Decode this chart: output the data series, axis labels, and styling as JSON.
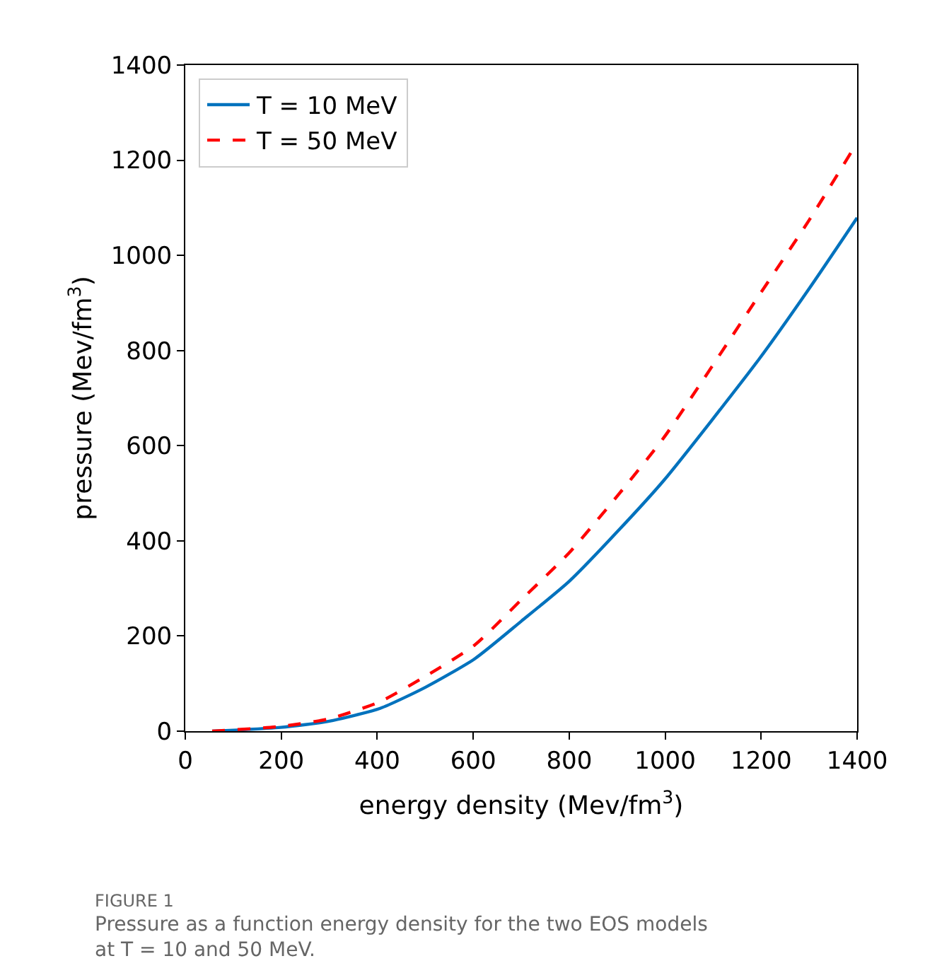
{
  "chart_data": {
    "type": "line",
    "xlabel": "energy density (Mev/fm$^{3}$)",
    "ylabel": "pressure (Mev/fm$^{3}$)",
    "xlim": [
      0,
      1400
    ],
    "ylim": [
      0,
      1400
    ],
    "xticks": [
      0,
      200,
      400,
      600,
      800,
      1000,
      1200,
      1400
    ],
    "yticks": [
      0,
      200,
      400,
      600,
      800,
      1000,
      1200,
      1400
    ],
    "legend": "top left",
    "series": [
      {
        "name": "T = 10 MeV",
        "color": "#0072bd",
        "line_style": "solid",
        "x": [
          56,
          199,
          300,
          406,
          500,
          603,
          700,
          800,
          900,
          998,
          1195,
          1300,
          1400
        ],
        "values": [
          0,
          8,
          21,
          48,
          92,
          152,
          231,
          315,
          419,
          528,
          781,
          930,
          1079
        ]
      },
      {
        "name": "T = 50 MeV",
        "color": "#ff0000",
        "line_style": "dashed",
        "x": [
          56,
          199,
          300,
          406,
          500,
          603,
          700,
          800,
          900,
          998,
          1195,
          1300,
          1400
        ],
        "values": [
          0,
          10,
          26,
          62,
          115,
          181,
          276,
          375,
          494,
          618,
          915,
          1074,
          1237
        ]
      }
    ],
    "annotations": [
      "FIGURE 1",
      "Pressure as a function energy density for the two EOS models at T = 10 and 50 MeV."
    ]
  }
}
